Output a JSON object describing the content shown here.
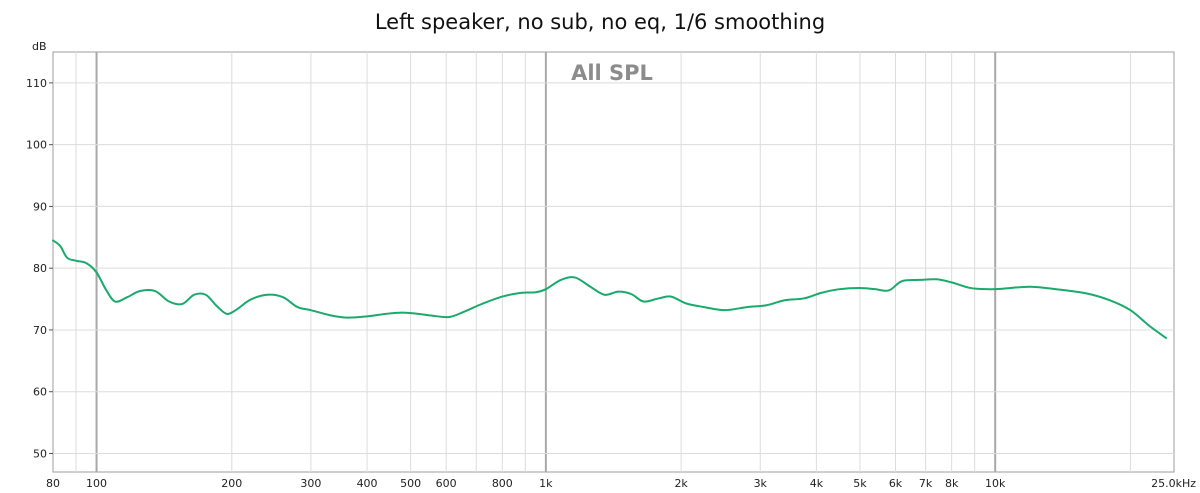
{
  "chart_data": {
    "type": "line",
    "title": "Left speaker, no sub, no eq, 1/6 smoothing",
    "annotation": "All SPL",
    "y_unit": "dB",
    "x_scale": "log",
    "xlim": [
      80,
      25000
    ],
    "ylim": [
      47,
      115
    ],
    "grid": true,
    "x_ticks": [
      {
        "value": 80,
        "label": "80"
      },
      {
        "value": 100,
        "label": "100"
      },
      {
        "value": 200,
        "label": "200"
      },
      {
        "value": 300,
        "label": "300"
      },
      {
        "value": 400,
        "label": "400"
      },
      {
        "value": 500,
        "label": "500"
      },
      {
        "value": 600,
        "label": "600"
      },
      {
        "value": 800,
        "label": "800"
      },
      {
        "value": 1000,
        "label": "1k"
      },
      {
        "value": 2000,
        "label": "2k"
      },
      {
        "value": 3000,
        "label": "3k"
      },
      {
        "value": 4000,
        "label": "4k"
      },
      {
        "value": 5000,
        "label": "5k"
      },
      {
        "value": 6000,
        "label": "6k"
      },
      {
        "value": 7000,
        "label": "7k"
      },
      {
        "value": 8000,
        "label": "8k"
      },
      {
        "value": 10000,
        "label": "10k"
      },
      {
        "value": 25000,
        "label": "25.0kHz"
      }
    ],
    "y_ticks": [
      50,
      60,
      70,
      80,
      90,
      100,
      110
    ],
    "minor_x_grid": [
      90,
      700,
      900,
      9000,
      20000
    ],
    "major_x_grid": [
      100,
      1000,
      10000
    ],
    "series": [
      {
        "color": "#1aaa6b",
        "x": [
          80,
          83,
          86,
          90,
          95,
          100,
          105,
          110,
          117,
          125,
          135,
          145,
          155,
          165,
          175,
          185,
          195,
          205,
          220,
          240,
          260,
          280,
          300,
          330,
          360,
          400,
          440,
          480,
          520,
          560,
          610,
          660,
          720,
          800,
          880,
          950,
          1000,
          1080,
          1160,
          1250,
          1350,
          1450,
          1550,
          1650,
          1780,
          1900,
          2050,
          2250,
          2500,
          2800,
          3100,
          3400,
          3750,
          4100,
          4500,
          5000,
          5400,
          5800,
          6200,
          6800,
          7400,
          8000,
          8800,
          9600,
          10500,
          12000,
          14000,
          16000,
          18000,
          20000,
          22000,
          24000
        ],
        "y": [
          84.5,
          83.6,
          81.7,
          81.2,
          80.8,
          79.3,
          76.5,
          74.6,
          75.3,
          76.3,
          76.3,
          74.6,
          74.2,
          75.7,
          75.7,
          73.9,
          72.6,
          73.3,
          74.9,
          75.7,
          75.3,
          73.7,
          73.2,
          72.4,
          72.0,
          72.2,
          72.6,
          72.8,
          72.6,
          72.3,
          72.1,
          73.0,
          74.2,
          75.4,
          76.0,
          76.1,
          76.6,
          78.1,
          78.5,
          77.1,
          75.7,
          76.2,
          75.8,
          74.6,
          75.1,
          75.4,
          74.3,
          73.7,
          73.2,
          73.7,
          74.0,
          74.8,
          75.1,
          76.0,
          76.6,
          76.8,
          76.6,
          76.4,
          77.9,
          78.1,
          78.2,
          77.7,
          76.8,
          76.6,
          76.7,
          77.0,
          76.5,
          75.9,
          74.8,
          73.2,
          70.7,
          68.7
        ]
      }
    ]
  }
}
